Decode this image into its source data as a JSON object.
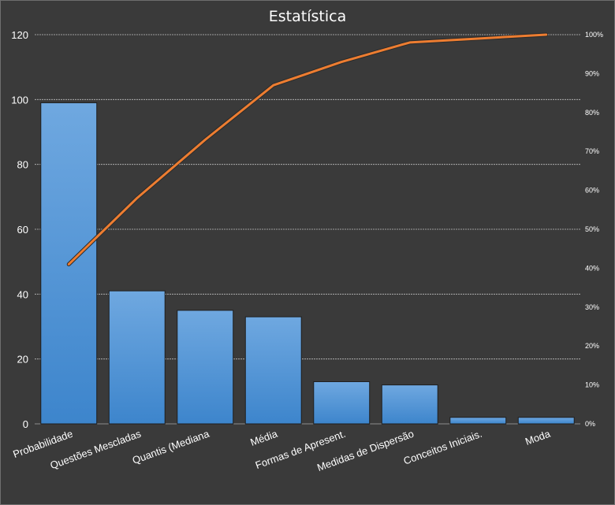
{
  "chart_data": {
    "type": "bar",
    "title": "Estatística",
    "xlabel": "",
    "ylabel": "",
    "categories": [
      "Probabilidade",
      "Questões Mescladas",
      "Quantis (Mediana",
      "Média",
      "Formas de Apresent.",
      "Medidas de Dispersão",
      "Conceitos Iniciais.",
      "Moda"
    ],
    "series": [
      {
        "type": "bar",
        "axis": "left",
        "values": [
          99,
          41,
          35,
          33,
          13,
          12,
          2,
          2
        ]
      },
      {
        "type": "line",
        "axis": "right",
        "values": [
          0.41,
          0.58,
          0.73,
          0.87,
          0.93,
          0.98,
          0.99,
          1.0
        ]
      }
    ],
    "ylim": [
      0,
      120
    ],
    "y_ticks": [
      "0",
      "20",
      "40",
      "60",
      "80",
      "100",
      "120"
    ],
    "y2lim": [
      0,
      1
    ],
    "y2_ticks": [
      "0%",
      "10%",
      "20%",
      "30%",
      "40%",
      "50%",
      "60%",
      "70%",
      "80%",
      "90%",
      "100%"
    ],
    "grid": true,
    "legend": "none",
    "colors": {
      "bar_top": "#6fa8e0",
      "bar_bottom": "#3d85cc",
      "line": "#ed7d31",
      "grid": "#bfbfbf",
      "background": "#3a3a3a"
    }
  }
}
